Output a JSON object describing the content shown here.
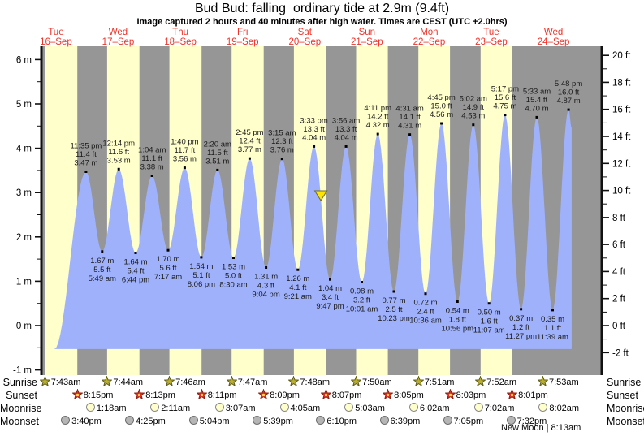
{
  "title": "Bud Bud: falling  ordinary tide at 2.9m (9.4ft)",
  "subtitle": "Image captured 2 hours and 40 minutes after high water. Times are CEST (UTC +2.0hrs)",
  "chart_data": {
    "type": "area",
    "title": "Bud Bud: falling  ordinary tide at 2.9m (9.4ft)",
    "x_days": [
      {
        "name": "Tue",
        "date": "16–Sep"
      },
      {
        "name": "Wed",
        "date": "17–Sep"
      },
      {
        "name": "Thu",
        "date": "18–Sep"
      },
      {
        "name": "Fri",
        "date": "19–Sep"
      },
      {
        "name": "Sat",
        "date": "20–Sep"
      },
      {
        "name": "Sun",
        "date": "21–Sep"
      },
      {
        "name": "Mon",
        "date": "22–Sep"
      },
      {
        "name": "Tue",
        "date": "23–Sep"
      },
      {
        "name": "Wed",
        "date": "24–Sep"
      }
    ],
    "y_axis_left": {
      "unit": "m",
      "tick_values": [
        6,
        5,
        4,
        3,
        2,
        1,
        0,
        -1
      ],
      "tick_labels": [
        "6 m",
        "5 m",
        "4 m",
        "3 m",
        "2 m",
        "1 m",
        "0 m",
        "-1 m"
      ]
    },
    "y_axis_right": {
      "unit": "ft",
      "tick_values": [
        20,
        18,
        16,
        14,
        12,
        10,
        8,
        6,
        4,
        2,
        0,
        -2
      ],
      "tick_labels": [
        "20 ft",
        "18 ft",
        "16 ft",
        "14 ft",
        "12 ft",
        "10 ft",
        "8 ft",
        "6 ft",
        "4 ft",
        "2 ft",
        "0 ft",
        "-2 ft"
      ]
    },
    "high_tides": [
      {
        "day": 0,
        "time": "11:35 pm",
        "ft": "11.4 ft",
        "m": "3.47 m"
      },
      {
        "day": 1,
        "time": "12:14 pm",
        "ft": "11.6 ft",
        "m": "3.53 m"
      },
      {
        "day": 2,
        "time": "1:04 am",
        "ft": "11.1 ft",
        "m": "3.38 m"
      },
      {
        "day": 2,
        "time": "1:40 pm",
        "ft": "11.7 ft",
        "m": "3.56 m"
      },
      {
        "day": 3,
        "time": "2:20 am",
        "ft": "11.5 ft",
        "m": "3.51 m"
      },
      {
        "day": 3,
        "time": "2:45 pm",
        "ft": "12.4 ft",
        "m": "3.77 m"
      },
      {
        "day": 4,
        "time": "3:15 am",
        "ft": "12.3 ft",
        "m": "3.76 m"
      },
      {
        "day": 4,
        "time": "3:33 pm",
        "ft": "13.3 ft",
        "m": "4.04 m"
      },
      {
        "day": 5,
        "time": "3:56 am",
        "ft": "13.3 ft",
        "m": "4.04 m"
      },
      {
        "day": 5,
        "time": "4:11 pm",
        "ft": "14.2 ft",
        "m": "4.32 m"
      },
      {
        "day": 6,
        "time": "4:31 am",
        "ft": "14.1 ft",
        "m": "4.31 m"
      },
      {
        "day": 6,
        "time": "4:45 pm",
        "ft": "15.0 ft",
        "m": "4.56 m"
      },
      {
        "day": 7,
        "time": "5:02 am",
        "ft": "14.9 ft",
        "m": "4.53 m"
      },
      {
        "day": 7,
        "time": "5:17 pm",
        "ft": "15.6 ft",
        "m": "4.75 m"
      },
      {
        "day": 8,
        "time": "5:33 am",
        "ft": "15.4 ft",
        "m": "4.70 m"
      },
      {
        "day": 8,
        "time": "5:48 pm",
        "ft": "16.0 ft",
        "m": "4.87 m"
      }
    ],
    "low_tides": [
      {
        "day": 1,
        "time": "5:49 am",
        "ft": "5.5 ft",
        "m": "1.67 m"
      },
      {
        "day": 1,
        "time": "6:44 pm",
        "ft": "5.4 ft",
        "m": "1.64 m"
      },
      {
        "day": 2,
        "time": "7:17 am",
        "ft": "5.6 ft",
        "m": "1.70 m"
      },
      {
        "day": 2,
        "time": "8:06 pm",
        "ft": "5.1 ft",
        "m": "1.54 m"
      },
      {
        "day": 3,
        "time": "8:30 am",
        "ft": "5.0 ft",
        "m": "1.53 m"
      },
      {
        "day": 3,
        "time": "9:04 pm",
        "ft": "4.3 ft",
        "m": "1.31 m"
      },
      {
        "day": 4,
        "time": "9:21 am",
        "ft": "4.1 ft",
        "m": "1.26 m"
      },
      {
        "day": 4,
        "time": "9:47 pm",
        "ft": "3.4 ft",
        "m": "1.04 m"
      },
      {
        "day": 5,
        "time": "10:01 am",
        "ft": "3.2 ft",
        "m": "0.98 m"
      },
      {
        "day": 5,
        "time": "10:23 pm",
        "ft": "2.5 ft",
        "m": "0.77 m"
      },
      {
        "day": 6,
        "time": "10:36 am",
        "ft": "2.4 ft",
        "m": "0.72 m"
      },
      {
        "day": 6,
        "time": "10:56 pm",
        "ft": "1.8 ft",
        "m": "0.54 m"
      },
      {
        "day": 7,
        "time": "11:07 am",
        "ft": "1.6 ft",
        "m": "0.50 m"
      },
      {
        "day": 7,
        "time": "11:27 pm",
        "ft": "1.2 ft",
        "m": "0.37 m"
      },
      {
        "day": 8,
        "time": "11:39 am",
        "ft": "1.1 ft",
        "m": "0.35 m"
      }
    ],
    "current_marker": {
      "hours_after_high": 2.67,
      "at_high_index": 7,
      "height_label": "2.9m",
      "color": "#ffe400"
    },
    "colors": {
      "day_band": "#ffffcc",
      "night_band": "#969696",
      "tide_fill": "#9fb1fb",
      "day_label": "#ee342b",
      "axis": "#111111",
      "annotation_text": "#1a1a1a"
    }
  },
  "almanac": {
    "rows": [
      {
        "label": "Sunrise",
        "icon": "sunrise-star",
        "icon_fill": "#b9ae2f",
        "icon_stroke": "#5f5c18",
        "entries": [
          {
            "day": 0,
            "time": "7:43am"
          },
          {
            "day": 1,
            "time": "7:44am"
          },
          {
            "day": 2,
            "time": "7:46am"
          },
          {
            "day": 3,
            "time": "7:47am"
          },
          {
            "day": 4,
            "time": "7:48am"
          },
          {
            "day": 5,
            "time": "7:50am"
          },
          {
            "day": 6,
            "time": "7:51am"
          },
          {
            "day": 7,
            "time": "7:52am"
          },
          {
            "day": 8,
            "time": "7:53am"
          }
        ]
      },
      {
        "label": "Sunset",
        "icon": "sunset-star",
        "icon_fill": "#e03126",
        "icon_stroke": "#8c1f12",
        "entries": [
          {
            "day": 0,
            "time": "8:15pm"
          },
          {
            "day": 1,
            "time": "8:13pm"
          },
          {
            "day": 2,
            "time": "8:11pm"
          },
          {
            "day": 3,
            "time": "8:09pm"
          },
          {
            "day": 4,
            "time": "8:07pm"
          },
          {
            "day": 5,
            "time": "8:05pm"
          },
          {
            "day": 6,
            "time": "8:03pm"
          },
          {
            "day": 7,
            "time": "8:01pm"
          }
        ]
      },
      {
        "label": "Moonrise",
        "icon": "moonrise-circle",
        "icon_fill": "#ffffcc",
        "icon_stroke": "#8a8a8a",
        "entries": [
          {
            "day": 1,
            "time": "1:18am"
          },
          {
            "day": 2,
            "time": "2:11am"
          },
          {
            "day": 3,
            "time": "3:07am"
          },
          {
            "day": 4,
            "time": "4:05am"
          },
          {
            "day": 5,
            "time": "5:03am"
          },
          {
            "day": 6,
            "time": "6:02am"
          },
          {
            "day": 7,
            "time": "7:02am"
          },
          {
            "day": 8,
            "time": "8:02am"
          }
        ]
      },
      {
        "label": "Moonset",
        "icon": "moonset-circle",
        "icon_fill": "#b5b5b5",
        "icon_stroke": "#6e6e6e",
        "entries": [
          {
            "day": 0,
            "time": "3:40pm"
          },
          {
            "day": 1,
            "time": "4:25pm"
          },
          {
            "day": 2,
            "time": "5:04pm"
          },
          {
            "day": 3,
            "time": "5:39pm"
          },
          {
            "day": 4,
            "time": "6:10pm"
          },
          {
            "day": 5,
            "time": "6:39pm"
          },
          {
            "day": 6,
            "time": "7:05pm"
          },
          {
            "day": 7,
            "time": "7:32pm"
          }
        ]
      }
    ],
    "footnote": "New Moon | 8:13am"
  }
}
